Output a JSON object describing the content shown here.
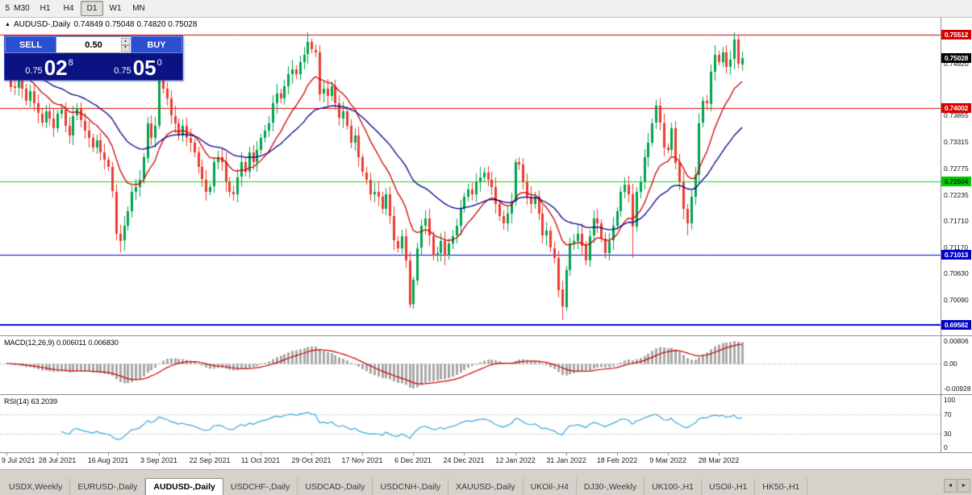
{
  "toolbar": {
    "partial_button": "5",
    "timeframes": [
      "M30",
      "H1",
      "H4",
      "D1",
      "W1",
      "MN"
    ],
    "active_timeframe": "D1"
  },
  "chart_header": {
    "marker": "▲",
    "symbol": "AUDUSD-,Daily",
    "ohlc": "0.74849 0.75048 0.74820 0.75028"
  },
  "trade_panel": {
    "sell_label": "SELL",
    "buy_label": "BUY",
    "volume": "0.50",
    "spin_up": "▲",
    "spin_down": "▼",
    "bid": {
      "prefix": "0.75",
      "big": "02",
      "sup": "8"
    },
    "ask": {
      "prefix": "0.75",
      "big": "05",
      "sup": "0"
    }
  },
  "price_axis": {
    "ticks": [
      "0.74920",
      "0.73855",
      "0.73315",
      "0.72775",
      "0.72235",
      "0.71710",
      "0.71170",
      "0.70630",
      "0.70090"
    ],
    "current_price": {
      "text": "0.75028",
      "value": 0.75028,
      "bg": "#000000",
      "fg": "#ffffff"
    }
  },
  "levels": [
    {
      "price": 0.75512,
      "text": "0.75512",
      "color": "#e00000",
      "label_bg": "#d60000",
      "label_fg": "#ffffff",
      "width": 1
    },
    {
      "price": 0.74002,
      "text": "0.74002",
      "color": "#e00000",
      "label_bg": "#d60000",
      "label_fg": "#ffffff",
      "width": 1
    },
    {
      "price": 0.72504,
      "text": "0.72504",
      "color": "#00e100",
      "label_bg": "#00ca00",
      "label_fg": "#00330a",
      "width": 1
    },
    {
      "price": 0.71013,
      "text": "0.71013",
      "color": "#0000d8",
      "label_bg": "#0000c8",
      "label_fg": "#ffffff",
      "width": 1
    },
    {
      "price": 0.69582,
      "text": "0.69582",
      "color": "#0000d8",
      "label_bg": "#0000c8",
      "label_fg": "#ffffff",
      "width": 2
    }
  ],
  "macd_panel": {
    "label": "MACD(12,26,9) 0.006011 0.006830",
    "fast": 12,
    "slow": 26,
    "signal": 9,
    "axis_labels": [
      "0.00806",
      "0.00",
      "-0.00928"
    ],
    "range": [
      -0.00928,
      0.00806
    ],
    "hist_color": "#a8a8a8",
    "signal_color": "#cc0000"
  },
  "rsi_panel": {
    "label": "RSI(14) 63.2039",
    "period": 14,
    "axis_labels": [
      "100",
      "70",
      "30",
      "0"
    ],
    "levels": [
      70,
      30
    ],
    "line_color": "#3ba5dc"
  },
  "date_axis": {
    "labels": [
      "9 Jul 2021",
      "28 Jul 2021",
      "16 Aug 2021",
      "3 Sep 2021",
      "22 Sep 2021",
      "11 Oct 2021",
      "29 Oct 2021",
      "17 Nov 2021",
      "6 Dec 2021",
      "24 Dec 2021",
      "12 Jan 2022",
      "31 Jan 2022",
      "18 Feb 2022",
      "9 Mar 2022",
      "28 Mar 2022"
    ],
    "indices": [
      0,
      13,
      26,
      39,
      52,
      65,
      78,
      91,
      104,
      117,
      130,
      143,
      156,
      169,
      182
    ]
  },
  "tabs": {
    "items": [
      "USDX,Weekly",
      "EURUSD-,Daily",
      "AUDUSD-,Daily",
      "USDCHF-,Daily",
      "USDCAD-,Daily",
      "USDCNH-,Daily",
      "XAUUSD-,Daily",
      "UKOil-,H4",
      "DJ30-,Weekly",
      "UK100-,H1",
      "USOil-,H1",
      "HK50-,H1"
    ],
    "active": "AUDUSD-,Daily",
    "scroll_left": "◄",
    "scroll_right": "►"
  },
  "chart_data": {
    "type": "candlestick",
    "symbol": "AUDUSD",
    "timeframe": "Daily",
    "price_range": [
      0.6937,
      0.7585
    ],
    "first_open": 0.7505,
    "wick": 0.0014,
    "closes": [
      0.7487,
      0.7445,
      0.7442,
      0.7465,
      0.744,
      0.7415,
      0.7435,
      0.741,
      0.739,
      0.7372,
      0.7395,
      0.738,
      0.736,
      0.739,
      0.7398,
      0.7365,
      0.7345,
      0.7385,
      0.74,
      0.7375,
      0.7355,
      0.734,
      0.732,
      0.7335,
      0.731,
      0.7295,
      0.728,
      0.723,
      0.7145,
      0.713,
      0.716,
      0.719,
      0.723,
      0.724,
      0.7255,
      0.73,
      0.737,
      0.734,
      0.7365,
      0.746,
      0.744,
      0.742,
      0.7385,
      0.737,
      0.7345,
      0.7365,
      0.734,
      0.733,
      0.731,
      0.728,
      0.7255,
      0.723,
      0.724,
      0.729,
      0.73,
      0.729,
      0.725,
      0.723,
      0.7225,
      0.726,
      0.729,
      0.727,
      0.731,
      0.729,
      0.7315,
      0.734,
      0.7355,
      0.737,
      0.741,
      0.743,
      0.742,
      0.7445,
      0.747,
      0.748,
      0.747,
      0.7495,
      0.751,
      0.7535,
      0.752,
      0.7515,
      0.743,
      0.744,
      0.7425,
      0.7445,
      0.741,
      0.738,
      0.7395,
      0.7365,
      0.733,
      0.7345,
      0.73,
      0.727,
      0.7255,
      0.7225,
      0.723,
      0.722,
      0.7195,
      0.7225,
      0.718,
      0.713,
      0.7115,
      0.714,
      0.709,
      0.7,
      0.705,
      0.7115,
      0.716,
      0.7175,
      0.714,
      0.71,
      0.7105,
      0.713,
      0.71,
      0.7125,
      0.714,
      0.716,
      0.7195,
      0.722,
      0.7235,
      0.7225,
      0.725,
      0.726,
      0.727,
      0.7255,
      0.724,
      0.7205,
      0.718,
      0.7165,
      0.7185,
      0.721,
      0.729,
      0.7285,
      0.725,
      0.722,
      0.7205,
      0.722,
      0.7185,
      0.714,
      0.715,
      0.7115,
      0.7095,
      0.703,
      0.6995,
      0.707,
      0.7125,
      0.713,
      0.7145,
      0.712,
      0.709,
      0.714,
      0.7175,
      0.7165,
      0.7135,
      0.7105,
      0.713,
      0.716,
      0.719,
      0.723,
      0.7245,
      0.7225,
      0.716,
      0.723,
      0.725,
      0.73,
      0.733,
      0.737,
      0.7405,
      0.737,
      0.732,
      0.7315,
      0.736,
      0.729,
      0.725,
      0.7195,
      0.7165,
      0.722,
      0.7265,
      0.737,
      0.7415,
      0.741,
      0.7475,
      0.751,
      0.7495,
      0.7515,
      0.7485,
      0.75,
      0.754,
      0.749,
      0.7503
    ],
    "extremes": [
      {
        "i": 29,
        "low": 0.7106
      },
      {
        "i": 39,
        "high": 0.7478
      },
      {
        "i": 77,
        "high": 0.7555
      },
      {
        "i": 103,
        "low": 0.6993
      },
      {
        "i": 142,
        "low": 0.6968
      },
      {
        "i": 160,
        "low": 0.7095
      },
      {
        "i": 174,
        "low": 0.714
      },
      {
        "i": 186,
        "high": 0.7555
      }
    ],
    "ma_fast": {
      "type": "ema",
      "period": 13,
      "color": "#cc0000"
    },
    "ma_slow": {
      "type": "ema",
      "period": 34,
      "color": "#00008b"
    },
    "up_color": "#00a24e",
    "down_color": "#e93b30"
  }
}
